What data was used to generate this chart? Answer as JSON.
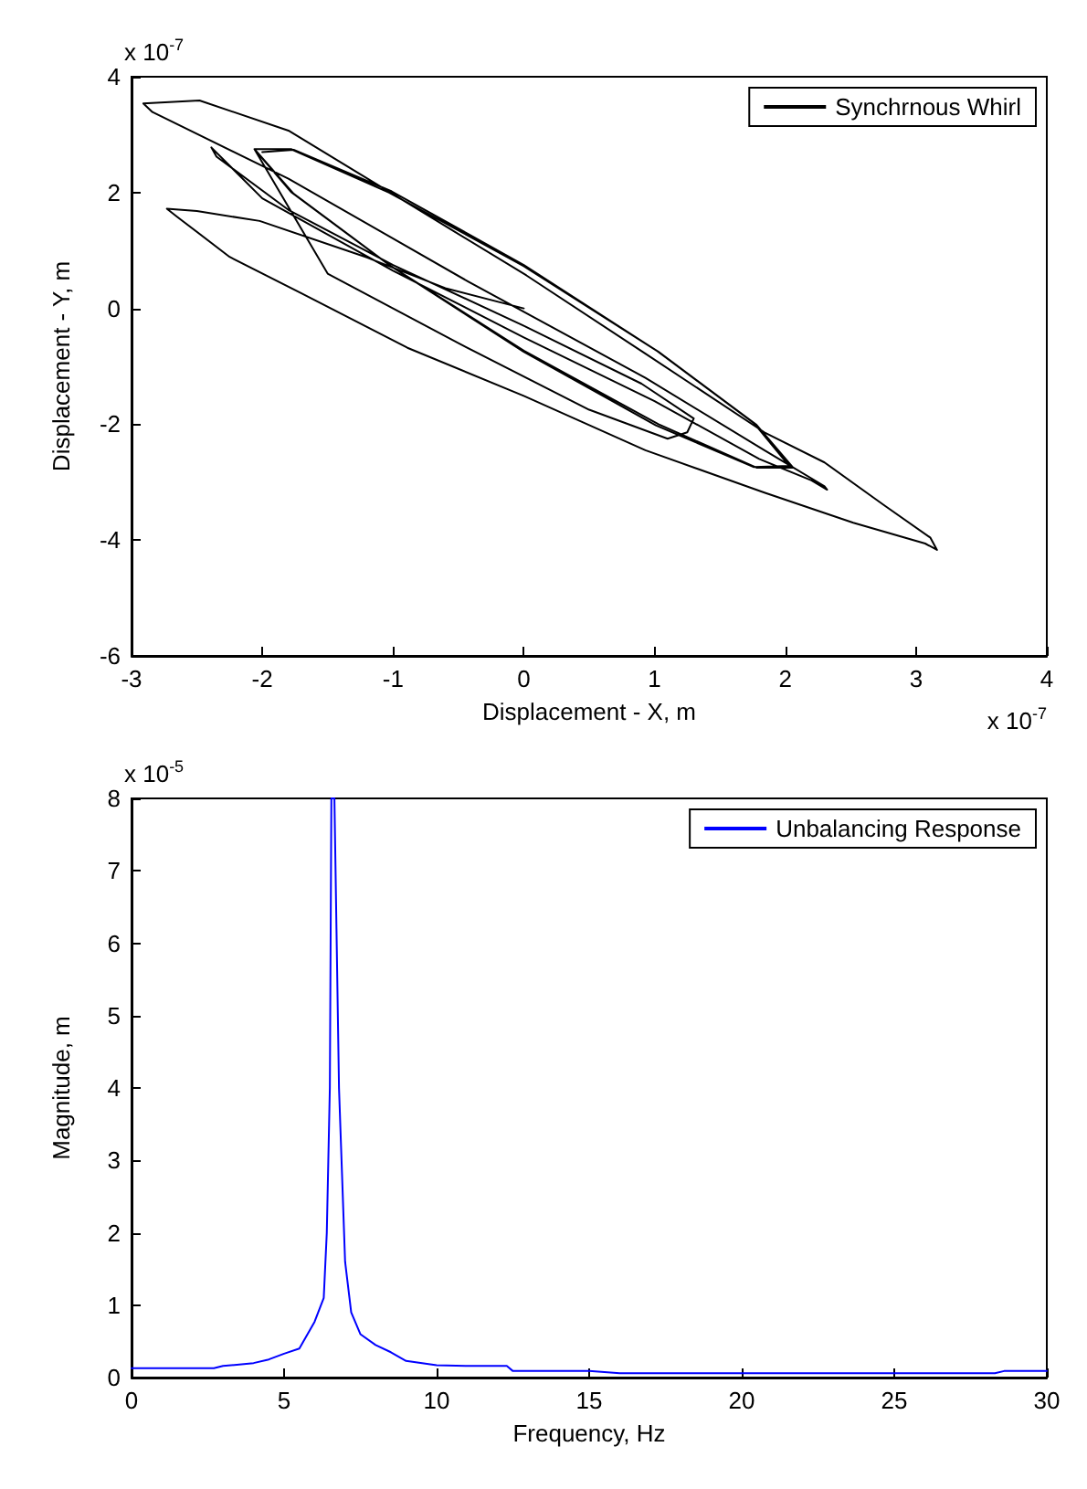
{
  "chart_data": [
    {
      "type": "line",
      "xlabel": "Displacement - X, m",
      "ylabel": "Displacement - Y, m",
      "annotations": [
        "x 10$^{-7}$",
        "x 10$^{-7}$"
      ],
      "xlim": [
        -3,
        4
      ],
      "ylim": [
        -6,
        4
      ],
      "xticks": [
        -3,
        -2,
        -1,
        0,
        1,
        2,
        3,
        4
      ],
      "yticks": [
        -6,
        -4,
        -2,
        0,
        2,
        4
      ],
      "grid": false,
      "legend": "top right",
      "series": [
        {
          "name": "Synchrnous Whirl",
          "color": "#000000",
          "x": [
            0,
            -0.6,
            -1.2,
            -2.02,
            -2.5,
            -2.73,
            -2.65,
            -2.25,
            -1.7,
            -0.89,
            0,
            0.93,
            1.84,
            2.52,
            3.07,
            3.16,
            3.11,
            2.75,
            2.3,
            1.84,
            0.93,
            0.02,
            -0.89,
            -1.8,
            -2.48,
            -2.91,
            -2.84,
            -1.8,
            -0.43,
            0.93,
            1.84,
            2.3,
            2.32,
            2.2,
            1.8,
            1.0,
            0,
            -1.0,
            -2.0,
            -2.39,
            -2.35,
            -1.8,
            -1.0,
            0,
            0.9,
            1.3,
            1.25,
            1.1,
            0.5,
            -0.5,
            -1.5,
            -2.06,
            -1.78,
            -1.03,
            0,
            1.03,
            1.78,
            2.06,
            1.78,
            1.03,
            0,
            -1.03,
            -1.78,
            -2.06,
            -1.76,
            -1.01,
            0,
            1.01,
            1.76,
            2.03,
            1.76,
            1.01,
            0,
            -1.01,
            -1.76,
            -2.0
          ],
          "values": [
            0,
            0.35,
            0.88,
            1.51,
            1.68,
            1.72,
            1.58,
            0.89,
            0.26,
            -0.68,
            -1.51,
            -2.45,
            -3.18,
            -3.7,
            -4.06,
            -4.17,
            -3.96,
            -3.39,
            -2.66,
            -2.14,
            -0.78,
            0.57,
            1.82,
            3.07,
            3.59,
            3.54,
            3.39,
            2.24,
            0.47,
            -1.2,
            -2.45,
            -3.07,
            -3.13,
            -2.97,
            -2.6,
            -1.6,
            -0.5,
            0.65,
            1.9,
            2.78,
            2.62,
            1.7,
            0.75,
            -0.3,
            -1.3,
            -1.9,
            -2.14,
            -2.25,
            -1.75,
            -0.6,
            0.6,
            2.75,
            2.01,
            0.75,
            -0.73,
            -2.0,
            -2.75,
            -2.75,
            -2.01,
            -0.75,
            0.73,
            2.0,
            2.75,
            2.75,
            1.98,
            0.72,
            -0.75,
            -2.02,
            -2.74,
            -2.72,
            -1.98,
            -0.72,
            0.75,
            2.02,
            2.74,
            2.7
          ]
        }
      ]
    },
    {
      "type": "line",
      "xlabel": "Frequency, Hz",
      "ylabel": "Magnitude, m",
      "annotations": [
        "x 10$^{-5}$"
      ],
      "xlim": [
        0,
        30
      ],
      "ylim": [
        0,
        8
      ],
      "xticks": [
        0,
        5,
        10,
        15,
        20,
        25,
        30
      ],
      "yticks": [
        0,
        1,
        2,
        3,
        4,
        5,
        6,
        7,
        8
      ],
      "grid": false,
      "legend": "top right",
      "series": [
        {
          "name": "Unbalancing Response",
          "color": "#0000ff",
          "x": [
            0,
            2.7,
            3,
            4,
            4.5,
            5,
            5.5,
            6,
            6.3,
            6.4,
            6.5,
            6.55,
            6.65,
            6.8,
            7.0,
            7.2,
            7.5,
            8,
            8.5,
            9,
            10,
            11,
            12.3,
            12.5,
            15,
            16,
            28.3,
            28.6,
            30
          ],
          "values": [
            0.13,
            0.13,
            0.16,
            0.2,
            0.25,
            0.33,
            0.4,
            0.77,
            1.1,
            2.0,
            4.0,
            8,
            8,
            4.0,
            1.6,
            0.9,
            0.6,
            0.45,
            0.35,
            0.23,
            0.17,
            0.16,
            0.16,
            0.09,
            0.09,
            0.06,
            0.06,
            0.09,
            0.09
          ]
        }
      ]
    }
  ]
}
